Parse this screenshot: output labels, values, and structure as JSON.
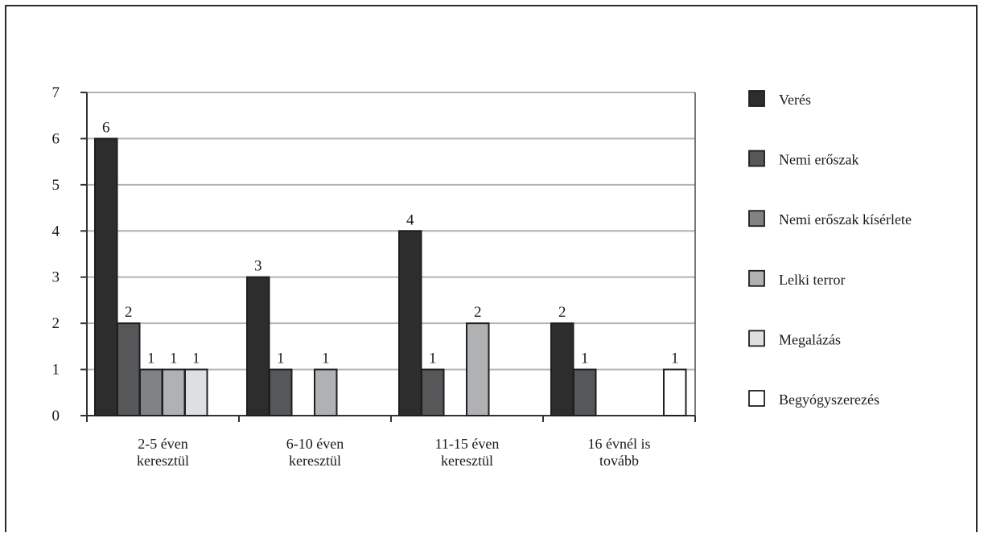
{
  "chart_data": {
    "type": "bar",
    "categories": [
      [
        "2-5 éven",
        "keresztül"
      ],
      [
        "6-10 éven",
        "keresztül"
      ],
      [
        "11-15 éven",
        "keresztül"
      ],
      [
        "16 évnél is",
        "tovább"
      ]
    ],
    "series": [
      {
        "name": "Verés",
        "color": "#2d2d2d",
        "values": [
          6,
          3,
          4,
          2
        ]
      },
      {
        "name": "Nemi erőszak",
        "color": "#555759",
        "values": [
          2,
          1,
          1,
          1
        ]
      },
      {
        "name": "Nemi erőszak kísérlete",
        "color": "#808284",
        "values": [
          1,
          null,
          null,
          null
        ]
      },
      {
        "name": "Lelki terror",
        "color": "#afb1b3",
        "values": [
          1,
          1,
          2,
          null
        ]
      },
      {
        "name": "Megalázás",
        "color": "#dedfe0",
        "values": [
          1,
          null,
          null,
          null
        ]
      },
      {
        "name": "Begyógyszerezés",
        "color": "#ffffff",
        "values": [
          null,
          null,
          null,
          1
        ]
      }
    ],
    "ylim": [
      0,
      7
    ],
    "yticks": [
      0,
      1,
      2,
      3,
      4,
      5,
      6,
      7
    ],
    "grid": true,
    "legend": "right"
  }
}
